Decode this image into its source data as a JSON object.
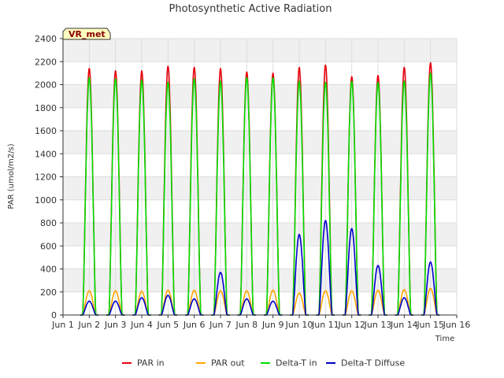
{
  "chart_data": {
    "type": "line",
    "title": "Photosynthetic Active Radiation",
    "xlabel": "Time",
    "ylabel": "PAR (umol/m2/s)",
    "xlim": [
      1,
      16
    ],
    "ylim": [
      0,
      2400
    ],
    "x_ticks": [
      {
        "value": 1,
        "label": "Jun 1"
      },
      {
        "value": 2,
        "label": "Jun 2"
      },
      {
        "value": 3,
        "label": "Jun 3"
      },
      {
        "value": 4,
        "label": "Jun 4"
      },
      {
        "value": 5,
        "label": "Jun 5"
      },
      {
        "value": 6,
        "label": "Jun 6"
      },
      {
        "value": 7,
        "label": "Jun 7"
      },
      {
        "value": 8,
        "label": "Jun 8"
      },
      {
        "value": 9,
        "label": "Jun 9"
      },
      {
        "value": 10,
        "label": "Jun 10"
      },
      {
        "value": 11,
        "label": "Jun 11"
      },
      {
        "value": 12,
        "label": "Jun 12"
      },
      {
        "value": 13,
        "label": "Jun 13"
      },
      {
        "value": 14,
        "label": "Jun 14"
      },
      {
        "value": 15,
        "label": "Jun 15"
      },
      {
        "value": 16,
        "label": "Jun 16"
      }
    ],
    "y_ticks": [
      0,
      200,
      400,
      600,
      800,
      1000,
      1200,
      1400,
      1600,
      1800,
      2000,
      2200,
      2400
    ],
    "grid": true,
    "legend_position": "bottom",
    "site_label": "VR_met",
    "day_sample_points": [
      1.75,
      1.85,
      1.95,
      2.05,
      2.15,
      2.25
    ],
    "daily_peaks": [
      {
        "day": 2,
        "par_in": 2140,
        "par_out": 210,
        "delta_t_in": 2060,
        "delta_t_diffuse": 120
      },
      {
        "day": 3,
        "par_in": 2120,
        "par_out": 210,
        "delta_t_in": 2050,
        "delta_t_diffuse": 120
      },
      {
        "day": 4,
        "par_in": 2120,
        "par_out": 205,
        "delta_t_in": 2040,
        "delta_t_diffuse": 150
      },
      {
        "day": 5,
        "par_in": 2160,
        "par_out": 215,
        "delta_t_in": 2020,
        "delta_t_diffuse": 170
      },
      {
        "day": 6,
        "par_in": 2150,
        "par_out": 215,
        "delta_t_in": 2050,
        "delta_t_diffuse": 140
      },
      {
        "day": 7,
        "par_in": 2140,
        "par_out": 210,
        "delta_t_in": 2030,
        "delta_t_diffuse": 370
      },
      {
        "day": 8,
        "par_in": 2110,
        "par_out": 210,
        "delta_t_in": 2060,
        "delta_t_diffuse": 140
      },
      {
        "day": 9,
        "par_in": 2100,
        "par_out": 215,
        "delta_t_in": 2060,
        "delta_t_diffuse": 120
      },
      {
        "day": 10,
        "par_in": 2150,
        "par_out": 190,
        "delta_t_in": 2030,
        "delta_t_diffuse": 700
      },
      {
        "day": 11,
        "par_in": 2170,
        "par_out": 210,
        "delta_t_in": 2020,
        "delta_t_diffuse": 820
      },
      {
        "day": 12,
        "par_in": 2070,
        "par_out": 210,
        "delta_t_in": 2030,
        "delta_t_diffuse": 750
      },
      {
        "day": 13,
        "par_in": 2080,
        "par_out": 215,
        "delta_t_in": 2020,
        "delta_t_diffuse": 430
      },
      {
        "day": 14,
        "par_in": 2150,
        "par_out": 220,
        "delta_t_in": 2030,
        "delta_t_diffuse": 150
      },
      {
        "day": 15,
        "par_in": 2190,
        "par_out": 230,
        "delta_t_in": 2100,
        "delta_t_diffuse": 460
      }
    ],
    "series": [
      {
        "key": "par_in",
        "name": "PAR in",
        "color": "#e8000b"
      },
      {
        "key": "par_out",
        "name": "PAR out",
        "color": "#ffa500"
      },
      {
        "key": "delta_t_in",
        "name": "Delta-T in",
        "color": "#00e000"
      },
      {
        "key": "delta_t_diffuse",
        "name": "Delta-T Diffuse",
        "color": "#0000cc"
      }
    ]
  }
}
